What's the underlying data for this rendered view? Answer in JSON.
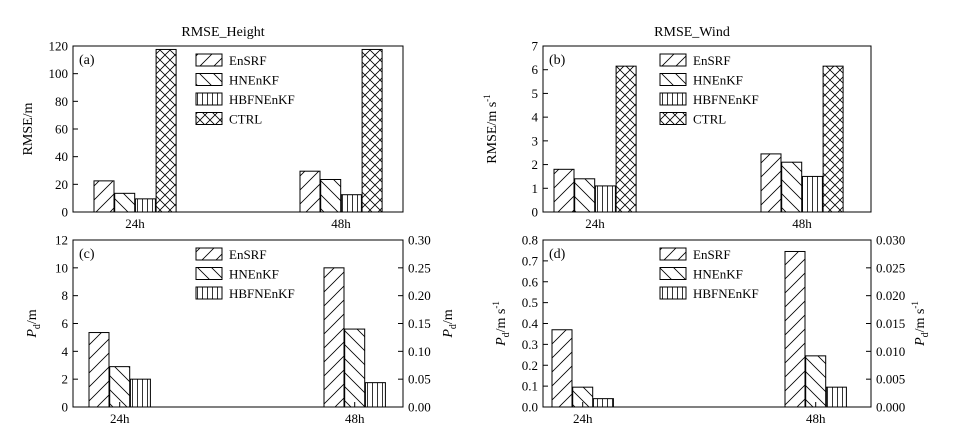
{
  "chart_data": [
    {
      "id": "a",
      "panel_label": "(a)",
      "type": "bar",
      "title": "RMSE_Height",
      "ylabel": "RMSE/m",
      "categories": [
        "24h",
        "48h"
      ],
      "ylim": [
        0,
        120
      ],
      "yticks": [
        "0",
        "20",
        "40",
        "60",
        "80",
        "100",
        "120"
      ],
      "series": [
        {
          "name": "EnSRF",
          "values": [
            22.5,
            29.5
          ]
        },
        {
          "name": "HNEnKF",
          "values": [
            13.5,
            23.5
          ]
        },
        {
          "name": "HBFNEnKF",
          "values": [
            9.5,
            12.5
          ]
        },
        {
          "name": "CTRL",
          "values": [
            117.5,
            117.5
          ]
        }
      ]
    },
    {
      "id": "b",
      "panel_label": "(b)",
      "type": "bar",
      "title": "RMSE_Wind",
      "ylabel_main": "RMSE/m s",
      "ylabel_sup": "-1",
      "categories": [
        "24h",
        "48h"
      ],
      "ylim": [
        0,
        7
      ],
      "yticks": [
        "0",
        "1",
        "2",
        "3",
        "4",
        "5",
        "6",
        "7"
      ],
      "series": [
        {
          "name": "EnSRF",
          "values": [
            1.8,
            2.45
          ]
        },
        {
          "name": "HNEnKF",
          "values": [
            1.4,
            2.1
          ]
        },
        {
          "name": "HBFNEnKF",
          "values": [
            1.1,
            1.5
          ]
        },
        {
          "name": "CTRL",
          "values": [
            6.15,
            6.15
          ]
        }
      ]
    },
    {
      "id": "c",
      "panel_label": "(c)",
      "type": "bar",
      "ylabel_main": "P",
      "ylabel_sub": "d",
      "ylabel_unit": "/m",
      "categories": [
        "24h",
        "48h"
      ],
      "ylim": [
        0,
        12
      ],
      "yticks": [
        "0",
        "2",
        "4",
        "6",
        "8",
        "10",
        "12"
      ],
      "ylim_right": [
        0,
        0.3
      ],
      "yticks_right": [
        "0.00",
        "0.05",
        "0.10",
        "0.15",
        "0.20",
        "0.25",
        "0.30"
      ],
      "series": [
        {
          "name": "EnSRF",
          "values": [
            5.35,
            10.0
          ]
        },
        {
          "name": "HNEnKF",
          "values": [
            2.9,
            5.6
          ]
        },
        {
          "name": "HBFNEnKF",
          "values": [
            2.0,
            1.75
          ]
        }
      ]
    },
    {
      "id": "d",
      "panel_label": "(d)",
      "type": "bar",
      "ylabel_main": "P",
      "ylabel_sub": "d",
      "ylabel_unit": "/m s",
      "ylabel_sup": "-1",
      "categories": [
        "24h",
        "48h"
      ],
      "ylim": [
        0,
        0.8
      ],
      "yticks": [
        "0.0",
        "0.1",
        "0.2",
        "0.3",
        "0.4",
        "0.5",
        "0.6",
        "0.7",
        "0.8"
      ],
      "ylim_right": [
        0,
        0.03
      ],
      "yticks_right": [
        "0.000",
        "0.005",
        "0.010",
        "0.015",
        "0.020",
        "0.025",
        "0.030"
      ],
      "series": [
        {
          "name": "EnSRF",
          "values": [
            0.37,
            0.745
          ]
        },
        {
          "name": "HNEnKF",
          "values": [
            0.095,
            0.245
          ]
        },
        {
          "name": "HBFNEnKF",
          "values": [
            0.04,
            0.095
          ]
        }
      ]
    }
  ]
}
